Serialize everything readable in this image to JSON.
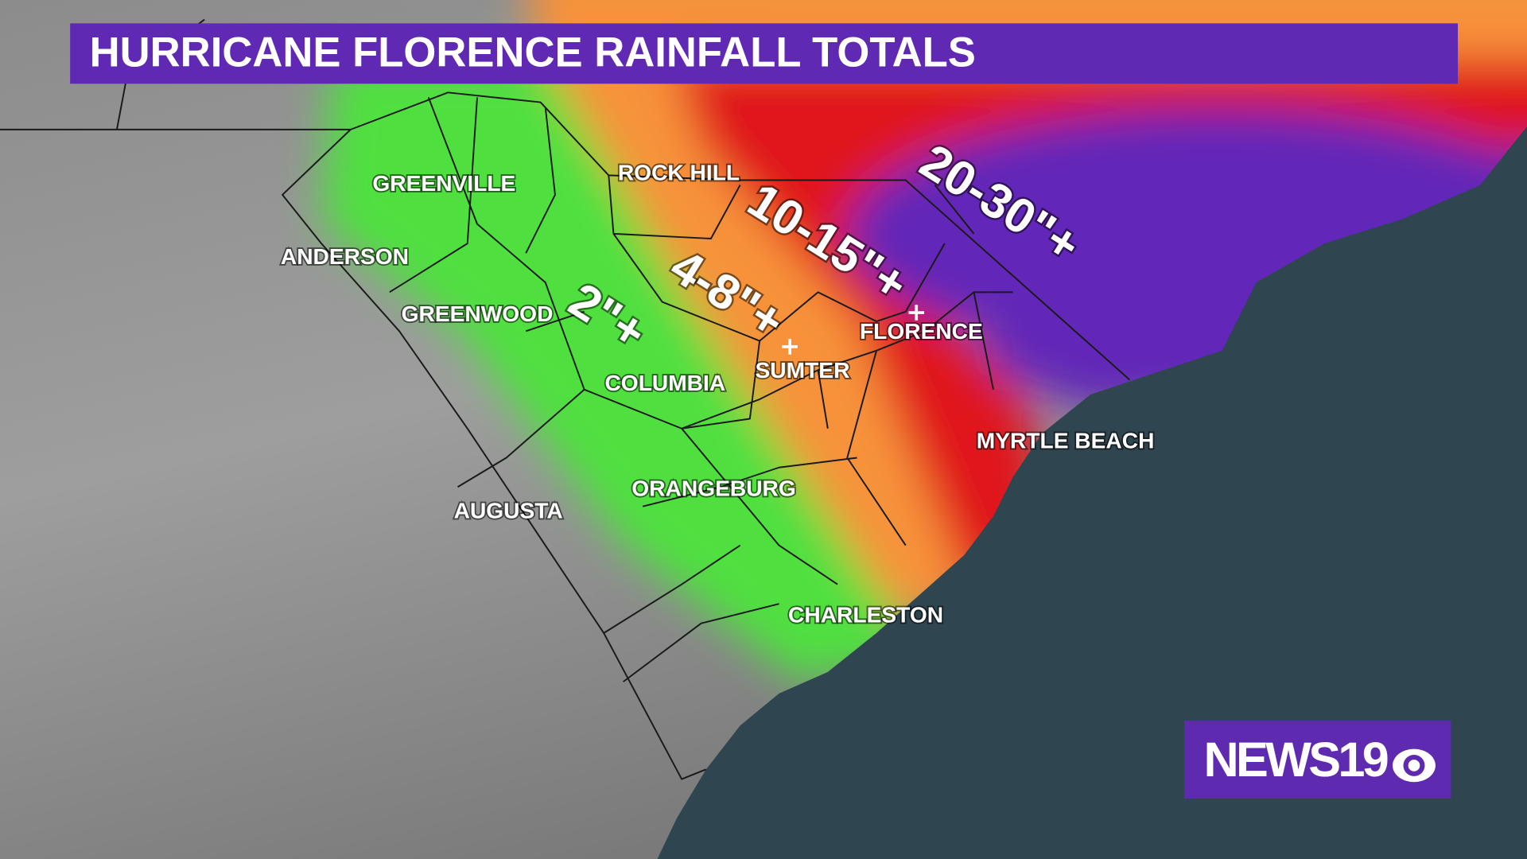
{
  "title": "HURRICANE FLORENCE RAINFALL TOTALS",
  "cities": [
    "GREENVILLE",
    "ANDERSON",
    "GREENWOOD",
    "COLUMBIA",
    "ROCK HILL",
    "SUMTER",
    "FLORENCE",
    "MYRTLE BEACH",
    "ORANGEBURG",
    "AUGUSTA",
    "CHARLESTON"
  ],
  "rainfall_zones": [
    "2\"+",
    "4-8\"+",
    "10-15\"+",
    "20-30\"+"
  ],
  "logo": {
    "text": "NEWS19"
  }
}
